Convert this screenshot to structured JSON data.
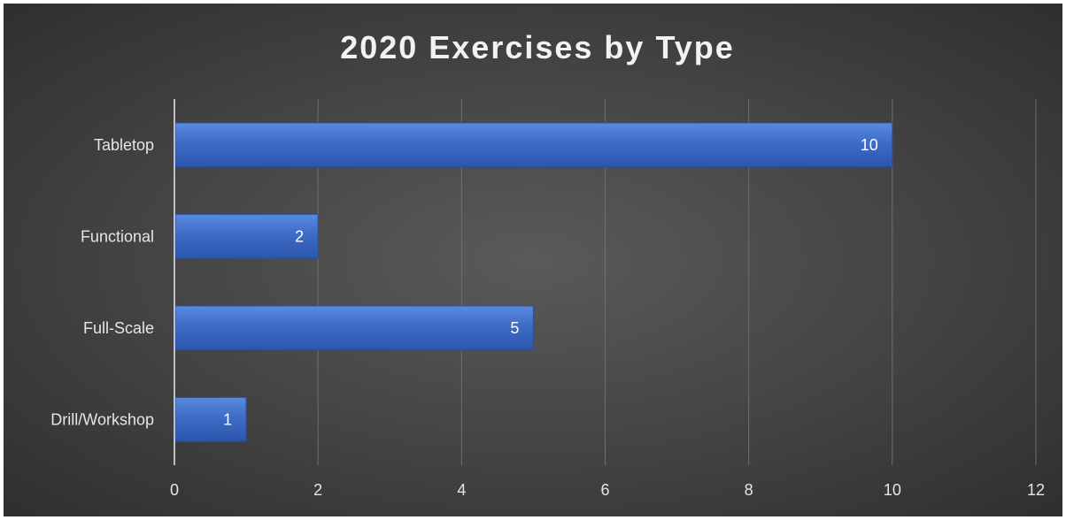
{
  "chart_data": {
    "type": "bar",
    "orientation": "horizontal",
    "title": "2020 Exercises by Type",
    "categories": [
      "Tabletop",
      "Functional",
      "Full-Scale",
      "Drill/Workshop"
    ],
    "values": [
      10,
      2,
      5,
      1
    ],
    "xlim": [
      0,
      12
    ],
    "xticks": [
      0,
      2,
      4,
      6,
      8,
      10,
      12
    ],
    "xlabel": "",
    "ylabel": "",
    "grid": true,
    "data_labels": true,
    "legend": "none",
    "bar_color": "#4472c4"
  }
}
